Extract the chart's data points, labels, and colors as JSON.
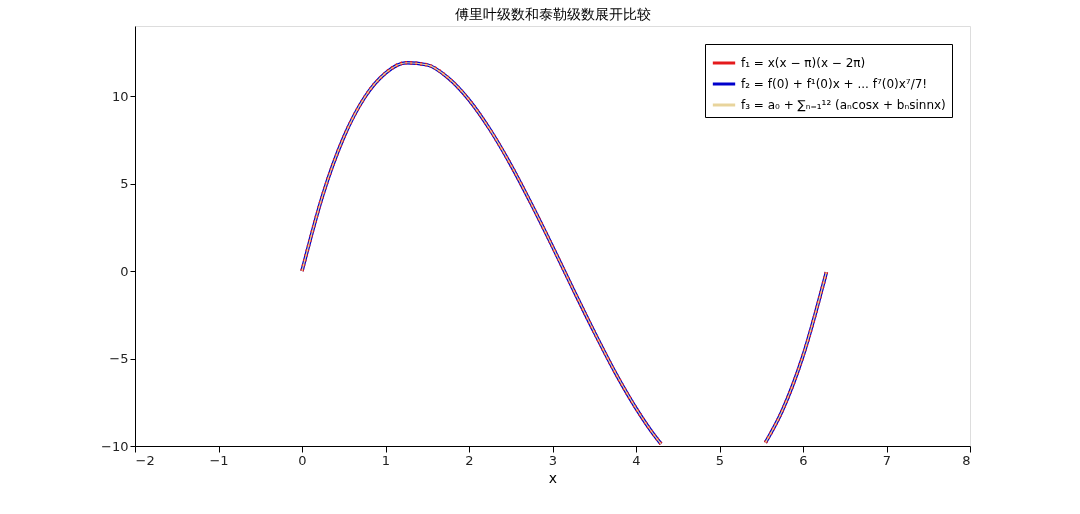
{
  "chart_data": {
    "type": "line",
    "title": "傅里叶级数和泰勒级数展开比较",
    "xlabel": "x",
    "x": [
      0,
      0.25,
      0.5,
      0.75,
      1.0,
      1.25,
      1.5,
      1.75,
      2.0,
      2.25,
      2.5,
      2.75,
      3.0,
      3.25,
      3.5,
      3.75,
      4.0,
      4.25,
      4.3,
      4.5,
      5.25,
      5.55,
      5.75,
      6.0,
      6.28
    ],
    "series": [
      {
        "name": "f₁ = x(x − π)(x − 2π)",
        "color": "#e41a1c",
        "line_style": "dotted",
        "values": [
          0,
          4.36,
          7.64,
          9.92,
          11.31,
          11.9,
          11.78,
          11.04,
          9.78,
          8.09,
          6.07,
          3.8,
          1.4,
          -1.07,
          -3.49,
          -5.79,
          -7.84,
          -9.58,
          -9.88,
          null,
          null,
          -9.81,
          -8.0,
          -4.85,
          -0.07
        ]
      },
      {
        "name": "f₂ = f(0) + f¹(0)x + ... f⁷(0)x⁷/7!",
        "color": "#0000cc",
        "line_style": "solid",
        "values": [
          0,
          4.36,
          7.64,
          9.92,
          11.31,
          11.9,
          11.78,
          11.04,
          9.78,
          8.09,
          6.07,
          3.8,
          1.4,
          -1.07,
          -3.49,
          -5.79,
          -7.84,
          -9.58,
          -9.88,
          null,
          null,
          -9.81,
          -8.0,
          -4.85,
          -0.07
        ]
      },
      {
        "name": "f₃ = a₀ + ∑ₙ₌₁¹² (aₙcosx + bₙsinnx)",
        "color": "#e8d49c",
        "line_style": "solid",
        "values": [
          0,
          4.36,
          7.64,
          9.92,
          11.31,
          11.9,
          11.78,
          11.04,
          9.78,
          8.09,
          6.07,
          3.8,
          1.4,
          -1.07,
          -3.49,
          -5.79,
          -7.84,
          -9.58,
          -9.88,
          null,
          null,
          -9.81,
          -8.0,
          -4.85,
          -0.07
        ]
      }
    ],
    "xlim": [
      -2,
      8
    ],
    "xticks": [
      -2,
      -1,
      0,
      1,
      2,
      3,
      4,
      5,
      6,
      7,
      8
    ],
    "ylim": [
      -10,
      14
    ],
    "yticks": [
      -10,
      -5,
      0,
      5,
      10
    ],
    "grid": false,
    "legend": "top right",
    "marker": "none"
  }
}
